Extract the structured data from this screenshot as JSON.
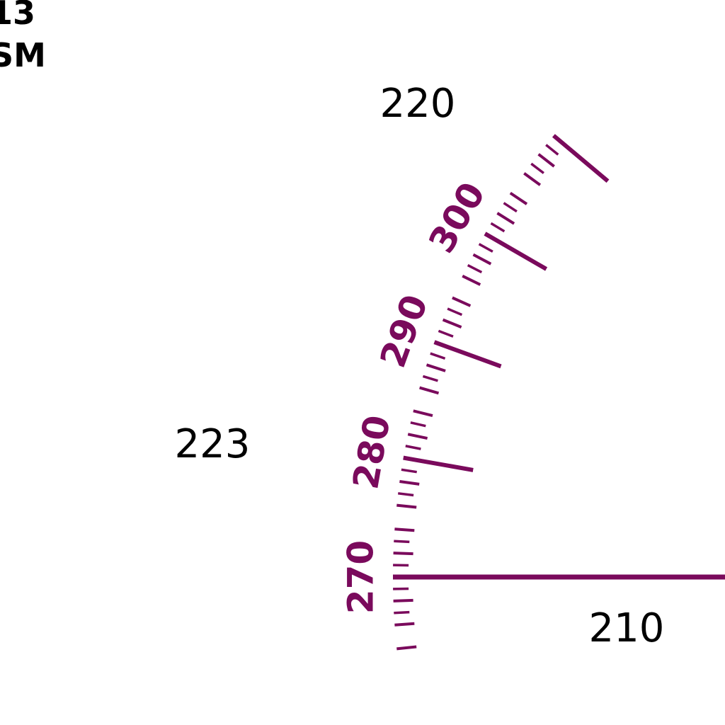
{
  "chart_background": "#ffffff",
  "compass_rose": {
    "color": "#7a0a5c",
    "visible_degree_labels": [
      "270",
      "280",
      "290",
      "300"
    ],
    "radial_line_bearing": "270"
  },
  "corner_label": {
    "line1": "13",
    "line2": "SM"
  },
  "elevation_labels": {
    "top": "220",
    "middle": "223",
    "bottom": "210"
  }
}
